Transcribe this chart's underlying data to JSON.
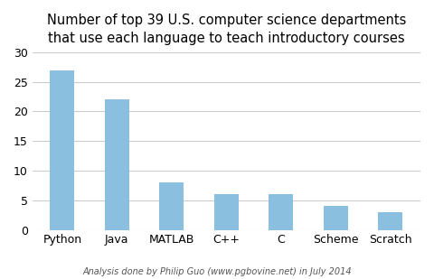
{
  "categories": [
    "Python",
    "Java",
    "MATLAB",
    "C++",
    "C",
    "Scheme",
    "Scratch"
  ],
  "values": [
    27,
    22,
    8,
    6,
    6,
    4,
    3
  ],
  "bar_color": "#8BBFDF",
  "title_line1": "Number of top 39 U.S. computer science departments",
  "title_line2": "that use each language to teach introductory courses",
  "footnote": "Analysis done by Philip Guo (www.pgbovine.net) in July 2014",
  "ylim": [
    0,
    30
  ],
  "yticks": [
    0,
    5,
    10,
    15,
    20,
    25,
    30
  ],
  "background_color": "#ffffff",
  "title_fontsize": 10.5,
  "footnote_fontsize": 7,
  "tick_label_fontsize": 9,
  "bar_width": 0.45
}
